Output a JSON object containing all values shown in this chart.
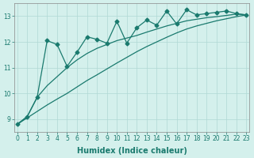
{
  "xlabel": "Humidex (Indice chaleur)",
  "background_color": "#d4f0ec",
  "grid_color": "#b0d8d4",
  "line_color": "#1a7a6e",
  "x_data": [
    0,
    1,
    2,
    3,
    4,
    5,
    6,
    7,
    8,
    9,
    10,
    11,
    12,
    13,
    14,
    15,
    16,
    17,
    18,
    19,
    20,
    21,
    22,
    23
  ],
  "y_jagged": [
    8.8,
    9.1,
    9.85,
    12.05,
    11.9,
    11.05,
    11.6,
    12.2,
    12.1,
    11.95,
    12.8,
    11.95,
    12.55,
    12.85,
    12.65,
    13.2,
    12.7,
    13.25,
    13.05,
    13.1,
    13.15,
    13.2,
    13.1,
    13.05
  ],
  "y_smooth": [
    8.8,
    9.1,
    9.85,
    10.3,
    10.65,
    11.0,
    11.3,
    11.55,
    11.75,
    11.9,
    12.05,
    12.15,
    12.25,
    12.38,
    12.5,
    12.62,
    12.72,
    12.82,
    12.88,
    12.94,
    12.98,
    13.03,
    13.08,
    13.05
  ],
  "y_line3": [
    8.8,
    9.05,
    9.3,
    9.55,
    9.78,
    10.0,
    10.25,
    10.5,
    10.72,
    10.95,
    11.18,
    11.4,
    11.62,
    11.82,
    12.0,
    12.18,
    12.35,
    12.5,
    12.62,
    12.72,
    12.82,
    12.9,
    12.98,
    13.05
  ],
  "ylim": [
    8.5,
    13.5
  ],
  "xlim": [
    -0.3,
    23.3
  ],
  "yticks": [
    9,
    10,
    11,
    12,
    13
  ],
  "xticks": [
    0,
    1,
    2,
    3,
    4,
    5,
    6,
    7,
    8,
    9,
    10,
    11,
    12,
    13,
    14,
    15,
    16,
    17,
    18,
    19,
    20,
    21,
    22,
    23
  ],
  "marker": "D",
  "marker_size": 2.5,
  "line_width": 0.9,
  "font_size_label": 7,
  "font_size_tick": 5.5
}
